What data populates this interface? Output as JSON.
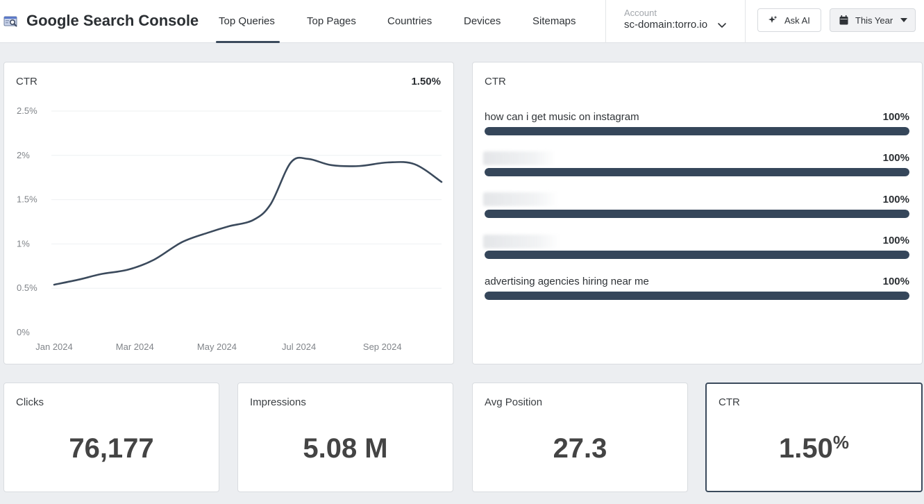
{
  "header": {
    "app_title": "Google Search Console",
    "tabs": [
      {
        "label": "Top Queries",
        "active": true
      },
      {
        "label": "Top Pages",
        "active": false
      },
      {
        "label": "Countries",
        "active": false
      },
      {
        "label": "Devices",
        "active": false
      },
      {
        "label": "Sitemaps",
        "active": false
      }
    ],
    "account_label": "Account",
    "account_value": "sc-domain:torro.io",
    "ask_ai_label": "Ask AI",
    "date_range_label": "This Year",
    "icons": {
      "logo": "search-console-logo",
      "ask_ai": "sparkle-icon",
      "calendar": "calendar-icon",
      "account_chevron": "chevron-down-icon",
      "date_caret": "caret-down-icon"
    }
  },
  "ctr_chart_card": {
    "title": "CTR",
    "value": "1.50%"
  },
  "chart_data": {
    "type": "line",
    "title": "CTR",
    "xlabel": "",
    "ylabel": "",
    "x_ticks": [
      "Jan 2024",
      "Mar 2024",
      "May 2024",
      "Jul 2024",
      "Sep 2024"
    ],
    "y_ticks": [
      "0%",
      "0.5%",
      "1%",
      "1.5%",
      "2%",
      "2.5%"
    ],
    "ylim": [
      0,
      2.5
    ],
    "grid": true,
    "line_color": "#3b4a5c",
    "series": [
      {
        "x": [
          "2024-01-01",
          "2024-01-20",
          "2024-02-05",
          "2024-02-25",
          "2024-03-15",
          "2024-04-05",
          "2024-04-25",
          "2024-05-10",
          "2024-05-28",
          "2024-06-10",
          "2024-06-25",
          "2024-07-08",
          "2024-07-25",
          "2024-08-15",
          "2024-09-05",
          "2024-09-25",
          "2024-10-15"
        ],
        "y": [
          0.54,
          0.6,
          0.66,
          0.71,
          0.82,
          1.02,
          1.13,
          1.2,
          1.27,
          1.45,
          1.92,
          1.96,
          1.89,
          1.88,
          1.92,
          1.9,
          1.7
        ]
      }
    ]
  },
  "ctr_list_card": {
    "title": "CTR",
    "rows": [
      {
        "label": "how can i get music on instagram",
        "value": "100%",
        "fill": 1.0,
        "redacted": false
      },
      {
        "label": "",
        "value": "100%",
        "fill": 1.0,
        "redacted": true
      },
      {
        "label": "",
        "value": "100%",
        "fill": 1.0,
        "redacted": true
      },
      {
        "label": "",
        "value": "100%",
        "fill": 1.0,
        "redacted": true
      },
      {
        "label": "advertising agencies hiring near me",
        "value": "100%",
        "fill": 1.0,
        "redacted": false
      }
    ]
  },
  "stats": {
    "clicks": {
      "label": "Clicks",
      "value": "76,177"
    },
    "impressions": {
      "label": "Impressions",
      "value": "5.08 M"
    },
    "avg_position": {
      "label": "Avg Position",
      "value": "27.3"
    },
    "ctr": {
      "label": "CTR",
      "value": "1.50",
      "unit": "%"
    }
  },
  "colors": {
    "accent": "#3b4a5c",
    "bar_fill": "#35465a",
    "background": "#eceef1"
  }
}
